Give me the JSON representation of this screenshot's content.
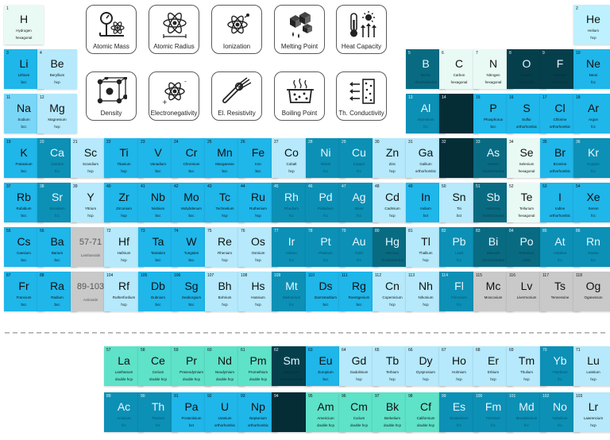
{
  "palette": {
    "c0": "#e9faf5",
    "c1": "#b5e9fb",
    "c2": "#79d6f7",
    "c3": "#1fb6ea",
    "c4": "#0c90b6",
    "c5": "#096b82",
    "c6": "#063f4c",
    "c7": "#052d36",
    "ch": "#bdf1ff",
    "cg": "#c9c9c9",
    "cm": "#5ee2c8"
  },
  "property_buttons": [
    {
      "label": "Atomic Mass",
      "icon": "scale-atom-icon"
    },
    {
      "label": "Atomic Radius",
      "icon": "atom-radius-icon"
    },
    {
      "label": "Ionization",
      "icon": "atom-ionization-icon"
    },
    {
      "label": "Melting Point",
      "icon": "melting-cubes-icon"
    },
    {
      "label": "Heat Capacity",
      "icon": "thermometer-sun-icon"
    },
    {
      "label": "Density",
      "icon": "crystal-lattice-icon"
    },
    {
      "label": "Electronegativity",
      "icon": "atom-charge-icon"
    },
    {
      "label": "El. Resistivity",
      "icon": "cable-icon"
    },
    {
      "label": "Boiling Point",
      "icon": "boiling-pot-icon"
    },
    {
      "label": "Th. Conductivity",
      "icon": "heat-transfer-icon"
    }
  ],
  "elements": [
    {
      "n": "1",
      "s": "H",
      "name": "Hydrogen",
      "st": "hexagonal",
      "r": 1,
      "c": 1,
      "col": "c0"
    },
    {
      "n": "2",
      "s": "He",
      "name": "Helium",
      "st": "hcp",
      "r": 1,
      "c": 18,
      "col": "ch"
    },
    {
      "n": "3",
      "s": "Li",
      "name": "Lithium",
      "st": "bcc",
      "r": 2,
      "c": 1,
      "col": "c3"
    },
    {
      "n": "4",
      "s": "Be",
      "name": "Beryllium",
      "st": "hcp",
      "r": 2,
      "c": 2,
      "col": "c1"
    },
    {
      "n": "5",
      "s": "B",
      "name": "Boron",
      "st": "rhombohedral",
      "r": 2,
      "c": 13,
      "col": "c5"
    },
    {
      "n": "6",
      "s": "C",
      "name": "Carbon",
      "st": "hexagonal",
      "r": 2,
      "c": 14,
      "col": "c0"
    },
    {
      "n": "7",
      "s": "N",
      "name": "Nitrogen",
      "st": "hexagonal",
      "r": 2,
      "c": 15,
      "col": "c0"
    },
    {
      "n": "8",
      "s": "O",
      "name": "Oxygen",
      "st": "monoclinic",
      "r": 2,
      "c": 16,
      "col": "c6"
    },
    {
      "n": "9",
      "s": "F",
      "name": "Fluorine",
      "st": "monoclinic",
      "r": 2,
      "c": 17,
      "col": "c6"
    },
    {
      "n": "10",
      "s": "Ne",
      "name": "Neon",
      "st": "fcc",
      "r": 2,
      "c": 18,
      "col": "c3"
    },
    {
      "n": "11",
      "s": "Na",
      "name": "Sodium",
      "st": "bcc",
      "r": 3,
      "c": 1,
      "col": "c2"
    },
    {
      "n": "12",
      "s": "Mg",
      "name": "Magnesium",
      "st": "hcp",
      "r": 3,
      "c": 2,
      "col": "c1"
    },
    {
      "n": "13",
      "s": "Al",
      "name": "Aluminium",
      "st": "fcc",
      "r": 3,
      "c": 13,
      "col": "c4"
    },
    {
      "n": "14",
      "s": "",
      "name": "",
      "st": "",
      "r": 3,
      "c": 14,
      "col": "c7"
    },
    {
      "n": "15",
      "s": "P",
      "name": "Phosphorus",
      "st": "bcc",
      "r": 3,
      "c": 15,
      "col": "c3"
    },
    {
      "n": "16",
      "s": "S",
      "name": "Sulfur",
      "st": "orthorhombic",
      "r": 3,
      "c": 16,
      "col": "c3"
    },
    {
      "n": "17",
      "s": "Cl",
      "name": "Chlorine",
      "st": "orthorhombic",
      "r": 3,
      "c": 17,
      "col": "c3"
    },
    {
      "n": "18",
      "s": "Ar",
      "name": "Argon",
      "st": "fcc",
      "r": 3,
      "c": 18,
      "col": "c3"
    },
    {
      "n": "19",
      "s": "K",
      "name": "Potassium",
      "st": "bcc",
      "r": 4,
      "c": 1,
      "col": "c3"
    },
    {
      "n": "20",
      "s": "Ca",
      "name": "Calcium",
      "st": "fcc",
      "r": 4,
      "c": 2,
      "col": "c4"
    },
    {
      "n": "21",
      "s": "Sc",
      "name": "Scandium",
      "st": "hcp",
      "r": 4,
      "c": 3,
      "col": "c1"
    },
    {
      "n": "22",
      "s": "Ti",
      "name": "Titanium",
      "st": "hcp",
      "r": 4,
      "c": 4,
      "col": "c3"
    },
    {
      "n": "23",
      "s": "V",
      "name": "Vanadium",
      "st": "bcc",
      "r": 4,
      "c": 5,
      "col": "c3"
    },
    {
      "n": "24",
      "s": "Cr",
      "name": "Chromium",
      "st": "bcc",
      "r": 4,
      "c": 6,
      "col": "c3"
    },
    {
      "n": "25",
      "s": "Mn",
      "name": "Manganese",
      "st": "bcc",
      "r": 4,
      "c": 7,
      "col": "c3"
    },
    {
      "n": "26",
      "s": "Fe",
      "name": "Iron",
      "st": "bcc",
      "r": 4,
      "c": 8,
      "col": "c3"
    },
    {
      "n": "27",
      "s": "Co",
      "name": "Cobalt",
      "st": "hcp",
      "r": 4,
      "c": 9,
      "col": "c1"
    },
    {
      "n": "28",
      "s": "Ni",
      "name": "Nickel",
      "st": "fcc",
      "r": 4,
      "c": 10,
      "col": "c4"
    },
    {
      "n": "29",
      "s": "Cu",
      "name": "Copper",
      "st": "fcc",
      "r": 4,
      "c": 11,
      "col": "c4"
    },
    {
      "n": "30",
      "s": "Zn",
      "name": "Zinc",
      "st": "hcp",
      "r": 4,
      "c": 12,
      "col": "c1"
    },
    {
      "n": "31",
      "s": "Ga",
      "name": "Gallium",
      "st": "orthorhombic",
      "r": 4,
      "c": 13,
      "col": "c1"
    },
    {
      "n": "32",
      "s": "",
      "name": "",
      "st": "",
      "r": 4,
      "c": 14,
      "col": "c7"
    },
    {
      "n": "33",
      "s": "As",
      "name": "Arsenic",
      "st": "rhombohedral",
      "r": 4,
      "c": 15,
      "col": "c5"
    },
    {
      "n": "34",
      "s": "Se",
      "name": "Selenium",
      "st": "hexagonal",
      "r": 4,
      "c": 16,
      "col": "c0"
    },
    {
      "n": "35",
      "s": "Br",
      "name": "Bromine",
      "st": "orthorhombic",
      "r": 4,
      "c": 17,
      "col": "c3"
    },
    {
      "n": "36",
      "s": "Kr",
      "name": "Krypton",
      "st": "fcc",
      "r": 4,
      "c": 18,
      "col": "c4"
    },
    {
      "n": "37",
      "s": "Rb",
      "name": "Rubidium",
      "st": "bcc",
      "r": 5,
      "c": 1,
      "col": "c3"
    },
    {
      "n": "38",
      "s": "Sr",
      "name": "Strontium",
      "st": "fcc",
      "r": 5,
      "c": 2,
      "col": "c4"
    },
    {
      "n": "39",
      "s": "Y",
      "name": "Yttrium",
      "st": "hcp",
      "r": 5,
      "c": 3,
      "col": "c1"
    },
    {
      "n": "40",
      "s": "Zr",
      "name": "Zirconium",
      "st": "hcp",
      "r": 5,
      "c": 4,
      "col": "c3"
    },
    {
      "n": "41",
      "s": "Nb",
      "name": "Niobium",
      "st": "bcc",
      "r": 5,
      "c": 5,
      "col": "c3"
    },
    {
      "n": "42",
      "s": "Mo",
      "name": "Molybdenum",
      "st": "bcc",
      "r": 5,
      "c": 6,
      "col": "c3"
    },
    {
      "n": "43",
      "s": "Tc",
      "name": "Technetium",
      "st": "hcp",
      "r": 5,
      "c": 7,
      "col": "c3"
    },
    {
      "n": "44",
      "s": "Ru",
      "name": "Ruthenium",
      "st": "hcp",
      "r": 5,
      "c": 8,
      "col": "c3"
    },
    {
      "n": "45",
      "s": "Rh",
      "name": "Rhodium",
      "st": "fcc",
      "r": 5,
      "c": 9,
      "col": "c4"
    },
    {
      "n": "46",
      "s": "Pd",
      "name": "Palladium",
      "st": "fcc",
      "r": 5,
      "c": 10,
      "col": "c4"
    },
    {
      "n": "47",
      "s": "Ag",
      "name": "Silver",
      "st": "fcc",
      "r": 5,
      "c": 11,
      "col": "c4"
    },
    {
      "n": "48",
      "s": "Cd",
      "name": "Cadmium",
      "st": "hcp",
      "r": 5,
      "c": 12,
      "col": "c1"
    },
    {
      "n": "49",
      "s": "In",
      "name": "Indium",
      "st": "bct",
      "r": 5,
      "c": 13,
      "col": "c3"
    },
    {
      "n": "50",
      "s": "Sn",
      "name": "Tin",
      "st": "bct",
      "r": 5,
      "c": 14,
      "col": "c1"
    },
    {
      "n": "51",
      "s": "Sb",
      "name": "Antimony",
      "st": "rhombohedral",
      "r": 5,
      "c": 15,
      "col": "c5"
    },
    {
      "n": "52",
      "s": "Te",
      "name": "Tellurium",
      "st": "hexagonal",
      "r": 5,
      "c": 16,
      "col": "c0"
    },
    {
      "n": "53",
      "s": "I",
      "name": "Iodine",
      "st": "orthorhombic",
      "r": 5,
      "c": 17,
      "col": "c3"
    },
    {
      "n": "54",
      "s": "Xe",
      "name": "Xenon",
      "st": "fcc",
      "r": 5,
      "c": 18,
      "col": "c3"
    },
    {
      "n": "55",
      "s": "Cs",
      "name": "Caesium",
      "st": "bcc",
      "r": 6,
      "c": 1,
      "col": "c3"
    },
    {
      "n": "56",
      "s": "Ba",
      "name": "Barium",
      "st": "bcc",
      "r": 6,
      "c": 2,
      "col": "c3"
    },
    {
      "n": "",
      "s": "57-71",
      "name": "Lanthanoids",
      "st": "",
      "r": 6,
      "c": 3,
      "col": "cg",
      "special": true
    },
    {
      "n": "72",
      "s": "Hf",
      "name": "Hafnium",
      "st": "hcp",
      "r": 6,
      "c": 4,
      "col": "c1"
    },
    {
      "n": "73",
      "s": "Ta",
      "name": "Tantalum",
      "st": "bcc",
      "r": 6,
      "c": 5,
      "col": "c3"
    },
    {
      "n": "74",
      "s": "W",
      "name": "Tungsten",
      "st": "bcc",
      "r": 6,
      "c": 6,
      "col": "c3"
    },
    {
      "n": "75",
      "s": "Re",
      "name": "Rhenium",
      "st": "hcp",
      "r": 6,
      "c": 7,
      "col": "c1"
    },
    {
      "n": "76",
      "s": "Os",
      "name": "Osmium",
      "st": "hcp",
      "r": 6,
      "c": 8,
      "col": "c1"
    },
    {
      "n": "77",
      "s": "Ir",
      "name": "Iridium",
      "st": "fcc",
      "r": 6,
      "c": 9,
      "col": "c4"
    },
    {
      "n": "78",
      "s": "Pt",
      "name": "Platinum",
      "st": "fcc",
      "r": 6,
      "c": 10,
      "col": "c4"
    },
    {
      "n": "79",
      "s": "Au",
      "name": "Gold",
      "st": "fcc",
      "r": 6,
      "c": 11,
      "col": "c4"
    },
    {
      "n": "80",
      "s": "Hg",
      "name": "Mercury",
      "st": "rhombohedral",
      "r": 6,
      "c": 12,
      "col": "c5"
    },
    {
      "n": "81",
      "s": "Tl",
      "name": "Thallium",
      "st": "hcp",
      "r": 6,
      "c": 13,
      "col": "c1"
    },
    {
      "n": "82",
      "s": "Pb",
      "name": "Lead",
      "st": "fcc",
      "r": 6,
      "c": 14,
      "col": "c4"
    },
    {
      "n": "83",
      "s": "Bi",
      "name": "Bismuth",
      "st": "rhombohedral",
      "r": 6,
      "c": 15,
      "col": "c5"
    },
    {
      "n": "84",
      "s": "Po",
      "name": "Polonium",
      "st": "cubic",
      "r": 6,
      "c": 16,
      "col": "c5"
    },
    {
      "n": "85",
      "s": "At",
      "name": "Astatine",
      "st": "fcc",
      "r": 6,
      "c": 17,
      "col": "c4"
    },
    {
      "n": "86",
      "s": "Rn",
      "name": "Radon",
      "st": "fcc",
      "r": 6,
      "c": 18,
      "col": "c4"
    },
    {
      "n": "87",
      "s": "Fr",
      "name": "Francium",
      "st": "bcc",
      "r": 7,
      "c": 1,
      "col": "c3"
    },
    {
      "n": "88",
      "s": "Ra",
      "name": "Radium",
      "st": "bcc",
      "r": 7,
      "c": 2,
      "col": "c3"
    },
    {
      "n": "",
      "s": "89-103",
      "name": "Actinoids",
      "st": "",
      "r": 7,
      "c": 3,
      "col": "cg",
      "special": true
    },
    {
      "n": "104",
      "s": "Rf",
      "name": "Rutherfordium",
      "st": "hcp",
      "r": 7,
      "c": 4,
      "col": "c1"
    },
    {
      "n": "105",
      "s": "Db",
      "name": "Dubnium",
      "st": "bcc",
      "r": 7,
      "c": 5,
      "col": "c3"
    },
    {
      "n": "106",
      "s": "Sg",
      "name": "Seaborgium",
      "st": "bcc",
      "r": 7,
      "c": 6,
      "col": "c3"
    },
    {
      "n": "107",
      "s": "Bh",
      "name": "Bohrium",
      "st": "hcp",
      "r": 7,
      "c": 7,
      "col": "c1"
    },
    {
      "n": "108",
      "s": "Hs",
      "name": "Hassium",
      "st": "hcp",
      "r": 7,
      "c": 8,
      "col": "c1"
    },
    {
      "n": "109",
      "s": "Mt",
      "name": "Meitnerium",
      "st": "fcc",
      "r": 7,
      "c": 9,
      "col": "c4"
    },
    {
      "n": "110",
      "s": "Ds",
      "name": "Darmstadtium",
      "st": "bcc",
      "r": 7,
      "c": 10,
      "col": "c3"
    },
    {
      "n": "111",
      "s": "Rg",
      "name": "Roentgenium",
      "st": "bcc",
      "r": 7,
      "c": 11,
      "col": "c3"
    },
    {
      "n": "112",
      "s": "Cn",
      "name": "Copernicium",
      "st": "hcp",
      "r": 7,
      "c": 12,
      "col": "c1"
    },
    {
      "n": "113",
      "s": "Nh",
      "name": "Nihonium",
      "st": "hcp",
      "r": 7,
      "c": 13,
      "col": "c1"
    },
    {
      "n": "114",
      "s": "Fl",
      "name": "Flerovium",
      "st": "fcc",
      "r": 7,
      "c": 14,
      "col": "c4"
    },
    {
      "n": "115",
      "s": "Mc",
      "name": "Moscovium",
      "st": "",
      "r": 7,
      "c": 15,
      "col": "cg"
    },
    {
      "n": "116",
      "s": "Lv",
      "name": "Livermorium",
      "st": "",
      "r": 7,
      "c": 16,
      "col": "cg"
    },
    {
      "n": "117",
      "s": "Ts",
      "name": "Tennessine",
      "st": "",
      "r": 7,
      "c": 17,
      "col": "cg"
    },
    {
      "n": "118",
      "s": "Og",
      "name": "Oganesson",
      "st": "",
      "r": 7,
      "c": 18,
      "col": "cg"
    },
    {
      "n": "57",
      "s": "La",
      "name": "Lanthanum",
      "st": "double hcp",
      "r": 9,
      "c": 4,
      "col": "cm"
    },
    {
      "n": "58",
      "s": "Ce",
      "name": "Cerium",
      "st": "double hcp",
      "r": 9,
      "c": 5,
      "col": "cm"
    },
    {
      "n": "59",
      "s": "Pr",
      "name": "Praseodymium",
      "st": "double hcp",
      "r": 9,
      "c": 6,
      "col": "cm"
    },
    {
      "n": "60",
      "s": "Nd",
      "name": "Neodymium",
      "st": "double hcp",
      "r": 9,
      "c": 7,
      "col": "cm"
    },
    {
      "n": "61",
      "s": "Pm",
      "name": "Promethium",
      "st": "double hcp",
      "r": 9,
      "c": 8,
      "col": "cm"
    },
    {
      "n": "62",
      "s": "Sm",
      "name": "Samarium",
      "st": "rhombohedral",
      "r": 9,
      "c": 9,
      "col": "c6"
    },
    {
      "n": "63",
      "s": "Eu",
      "name": "Europium",
      "st": "bcc",
      "r": 9,
      "c": 10,
      "col": "c3"
    },
    {
      "n": "64",
      "s": "Gd",
      "name": "Gadolinium",
      "st": "hcp",
      "r": 9,
      "c": 11,
      "col": "c1"
    },
    {
      "n": "65",
      "s": "Tb",
      "name": "Terbium",
      "st": "hcp",
      "r": 9,
      "c": 12,
      "col": "c1"
    },
    {
      "n": "66",
      "s": "Dy",
      "name": "Dysprosium",
      "st": "hcp",
      "r": 9,
      "c": 13,
      "col": "c1"
    },
    {
      "n": "67",
      "s": "Ho",
      "name": "Holmium",
      "st": "hcp",
      "r": 9,
      "c": 14,
      "col": "c1"
    },
    {
      "n": "68",
      "s": "Er",
      "name": "Erbium",
      "st": "hcp",
      "r": 9,
      "c": 15,
      "col": "c1"
    },
    {
      "n": "69",
      "s": "Tm",
      "name": "Thulium",
      "st": "hcp",
      "r": 9,
      "c": 16,
      "col": "c1"
    },
    {
      "n": "70",
      "s": "Yb",
      "name": "Ytterbium",
      "st": "fcc",
      "r": 9,
      "c": 17,
      "col": "c4"
    },
    {
      "n": "71",
      "s": "Lu",
      "name": "Lutetium",
      "st": "hcp",
      "r": 9,
      "c": 18,
      "col": "c1"
    },
    {
      "n": "89",
      "s": "Ac",
      "name": "Actinium",
      "st": "fcc",
      "r": 10,
      "c": 4,
      "col": "c4"
    },
    {
      "n": "90",
      "s": "Th",
      "name": "Thorium",
      "st": "fcc",
      "r": 10,
      "c": 5,
      "col": "c4"
    },
    {
      "n": "91",
      "s": "Pa",
      "name": "Protactinium",
      "st": "bct",
      "r": 10,
      "c": 6,
      "col": "c3"
    },
    {
      "n": "92",
      "s": "U",
      "name": "Uranium",
      "st": "orthorhombic",
      "r": 10,
      "c": 7,
      "col": "c3"
    },
    {
      "n": "93",
      "s": "Np",
      "name": "Neptunium",
      "st": "orthorhombic",
      "r": 10,
      "c": 8,
      "col": "c3"
    },
    {
      "n": "94",
      "s": "",
      "name": "",
      "st": "",
      "r": 10,
      "c": 9,
      "col": "c7"
    },
    {
      "n": "95",
      "s": "Am",
      "name": "Americium",
      "st": "double hcp",
      "r": 10,
      "c": 10,
      "col": "cm"
    },
    {
      "n": "96",
      "s": "Cm",
      "name": "Curium",
      "st": "double hcp",
      "r": 10,
      "c": 11,
      "col": "cm"
    },
    {
      "n": "97",
      "s": "Bk",
      "name": "Berkelium",
      "st": "double hcp",
      "r": 10,
      "c": 12,
      "col": "cm"
    },
    {
      "n": "98",
      "s": "Cf",
      "name": "Californium",
      "st": "double hcp",
      "r": 10,
      "c": 13,
      "col": "cm"
    },
    {
      "n": "99",
      "s": "Es",
      "name": "Einsteinium",
      "st": "fcc",
      "r": 10,
      "c": 14,
      "col": "c4"
    },
    {
      "n": "100",
      "s": "Fm",
      "name": "Fermium",
      "st": "fcc",
      "r": 10,
      "c": 15,
      "col": "c4"
    },
    {
      "n": "101",
      "s": "Md",
      "name": "Mendelevium",
      "st": "fcc",
      "r": 10,
      "c": 16,
      "col": "c4"
    },
    {
      "n": "102",
      "s": "No",
      "name": "Nobelium",
      "st": "fcc",
      "r": 10,
      "c": 17,
      "col": "c4"
    },
    {
      "n": "103",
      "s": "Lr",
      "name": "Lawrencium",
      "st": "hcp",
      "r": 10,
      "c": 18,
      "col": "c1"
    }
  ]
}
